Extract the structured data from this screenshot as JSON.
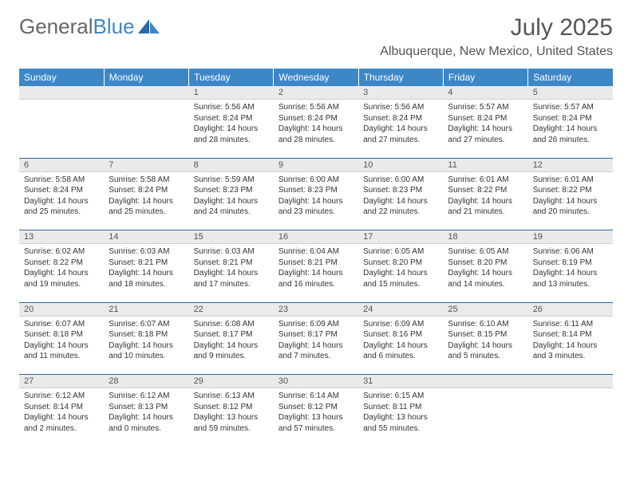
{
  "logo": {
    "text1": "General",
    "text2": "Blue"
  },
  "title": "July 2025",
  "location": "Albuquerque, New Mexico, United States",
  "colors": {
    "header_bg": "#3d87c7",
    "daynum_bg": "#e9eaeb",
    "week_border": "#2a6aa3"
  },
  "weekdays": [
    "Sunday",
    "Monday",
    "Tuesday",
    "Wednesday",
    "Thursday",
    "Friday",
    "Saturday"
  ],
  "weeks": [
    [
      null,
      null,
      {
        "n": "1",
        "sr": "5:56 AM",
        "ss": "8:24 PM",
        "dl": "14 hours and 28 minutes."
      },
      {
        "n": "2",
        "sr": "5:56 AM",
        "ss": "8:24 PM",
        "dl": "14 hours and 28 minutes."
      },
      {
        "n": "3",
        "sr": "5:56 AM",
        "ss": "8:24 PM",
        "dl": "14 hours and 27 minutes."
      },
      {
        "n": "4",
        "sr": "5:57 AM",
        "ss": "8:24 PM",
        "dl": "14 hours and 27 minutes."
      },
      {
        "n": "5",
        "sr": "5:57 AM",
        "ss": "8:24 PM",
        "dl": "14 hours and 26 minutes."
      }
    ],
    [
      {
        "n": "6",
        "sr": "5:58 AM",
        "ss": "8:24 PM",
        "dl": "14 hours and 25 minutes."
      },
      {
        "n": "7",
        "sr": "5:58 AM",
        "ss": "8:24 PM",
        "dl": "14 hours and 25 minutes."
      },
      {
        "n": "8",
        "sr": "5:59 AM",
        "ss": "8:23 PM",
        "dl": "14 hours and 24 minutes."
      },
      {
        "n": "9",
        "sr": "6:00 AM",
        "ss": "8:23 PM",
        "dl": "14 hours and 23 minutes."
      },
      {
        "n": "10",
        "sr": "6:00 AM",
        "ss": "8:23 PM",
        "dl": "14 hours and 22 minutes."
      },
      {
        "n": "11",
        "sr": "6:01 AM",
        "ss": "8:22 PM",
        "dl": "14 hours and 21 minutes."
      },
      {
        "n": "12",
        "sr": "6:01 AM",
        "ss": "8:22 PM",
        "dl": "14 hours and 20 minutes."
      }
    ],
    [
      {
        "n": "13",
        "sr": "6:02 AM",
        "ss": "8:22 PM",
        "dl": "14 hours and 19 minutes."
      },
      {
        "n": "14",
        "sr": "6:03 AM",
        "ss": "8:21 PM",
        "dl": "14 hours and 18 minutes."
      },
      {
        "n": "15",
        "sr": "6:03 AM",
        "ss": "8:21 PM",
        "dl": "14 hours and 17 minutes."
      },
      {
        "n": "16",
        "sr": "6:04 AM",
        "ss": "8:21 PM",
        "dl": "14 hours and 16 minutes."
      },
      {
        "n": "17",
        "sr": "6:05 AM",
        "ss": "8:20 PM",
        "dl": "14 hours and 15 minutes."
      },
      {
        "n": "18",
        "sr": "6:05 AM",
        "ss": "8:20 PM",
        "dl": "14 hours and 14 minutes."
      },
      {
        "n": "19",
        "sr": "6:06 AM",
        "ss": "8:19 PM",
        "dl": "14 hours and 13 minutes."
      }
    ],
    [
      {
        "n": "20",
        "sr": "6:07 AM",
        "ss": "8:18 PM",
        "dl": "14 hours and 11 minutes."
      },
      {
        "n": "21",
        "sr": "6:07 AM",
        "ss": "8:18 PM",
        "dl": "14 hours and 10 minutes."
      },
      {
        "n": "22",
        "sr": "6:08 AM",
        "ss": "8:17 PM",
        "dl": "14 hours and 9 minutes."
      },
      {
        "n": "23",
        "sr": "6:09 AM",
        "ss": "8:17 PM",
        "dl": "14 hours and 7 minutes."
      },
      {
        "n": "24",
        "sr": "6:09 AM",
        "ss": "8:16 PM",
        "dl": "14 hours and 6 minutes."
      },
      {
        "n": "25",
        "sr": "6:10 AM",
        "ss": "8:15 PM",
        "dl": "14 hours and 5 minutes."
      },
      {
        "n": "26",
        "sr": "6:11 AM",
        "ss": "8:14 PM",
        "dl": "14 hours and 3 minutes."
      }
    ],
    [
      {
        "n": "27",
        "sr": "6:12 AM",
        "ss": "8:14 PM",
        "dl": "14 hours and 2 minutes."
      },
      {
        "n": "28",
        "sr": "6:12 AM",
        "ss": "8:13 PM",
        "dl": "14 hours and 0 minutes."
      },
      {
        "n": "29",
        "sr": "6:13 AM",
        "ss": "8:12 PM",
        "dl": "13 hours and 59 minutes."
      },
      {
        "n": "30",
        "sr": "6:14 AM",
        "ss": "8:12 PM",
        "dl": "13 hours and 57 minutes."
      },
      {
        "n": "31",
        "sr": "6:15 AM",
        "ss": "8:11 PM",
        "dl": "13 hours and 55 minutes."
      },
      null,
      null
    ]
  ],
  "labels": {
    "sunrise": "Sunrise:",
    "sunset": "Sunset:",
    "daylight": "Daylight:"
  }
}
